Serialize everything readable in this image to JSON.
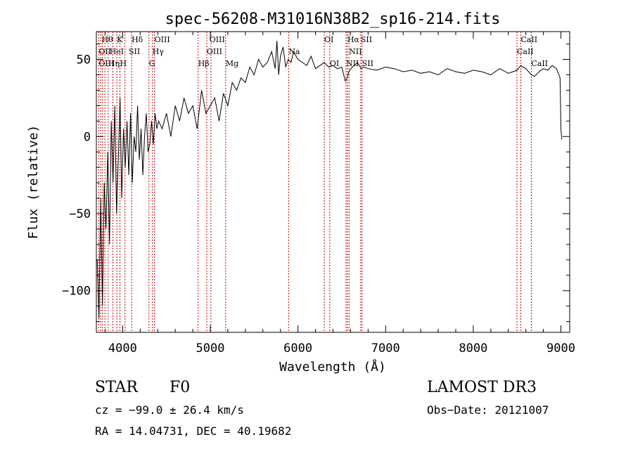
{
  "chart_data": {
    "type": "line",
    "title": "spec-56208-M31016N38B2_sp16-214.fits",
    "xlabel": "Wavelength (Å)",
    "ylabel": "Flux (relative)",
    "xlim": [
      3700,
      9100
    ],
    "ylim": [
      -127,
      68
    ],
    "xticks": [
      4000,
      5000,
      6000,
      7000,
      8000,
      9000
    ],
    "xtick_labels": [
      "4000",
      "5000",
      "6000",
      "7000",
      "8000",
      "9000"
    ],
    "yticks": [
      -100,
      -50,
      0,
      50
    ],
    "ytick_labels": [
      "−100",
      "−50",
      "0",
      "50"
    ],
    "series": [
      {
        "name": "spectrum",
        "x": [
          3710,
          3730,
          3750,
          3770,
          3790,
          3810,
          3830,
          3850,
          3870,
          3890,
          3910,
          3930,
          3950,
          3970,
          3990,
          4010,
          4030,
          4050,
          4070,
          4090,
          4110,
          4130,
          4150,
          4170,
          4190,
          4210,
          4230,
          4250,
          4270,
          4290,
          4310,
          4330,
          4350,
          4370,
          4390,
          4410,
          4450,
          4500,
          4550,
          4600,
          4650,
          4700,
          4750,
          4800,
          4850,
          4900,
          4950,
          5000,
          5050,
          5100,
          5150,
          5200,
          5250,
          5300,
          5350,
          5400,
          5450,
          5500,
          5550,
          5600,
          5650,
          5700,
          5740,
          5760,
          5780,
          5800,
          5830,
          5860,
          5890,
          5920,
          5950,
          6000,
          6050,
          6100,
          6150,
          6200,
          6250,
          6300,
          6350,
          6400,
          6450,
          6500,
          6540,
          6562,
          6580,
          6620,
          6680,
          6720,
          6750,
          6800,
          6900,
          7000,
          7100,
          7200,
          7300,
          7400,
          7500,
          7600,
          7700,
          7800,
          7900,
          8000,
          8100,
          8200,
          8300,
          8400,
          8500,
          8540,
          8600,
          8662,
          8700,
          8750,
          8800,
          8850,
          8900,
          8950,
          8990,
          9000,
          9010
        ],
        "values": [
          -80,
          -118,
          -40,
          -110,
          -30,
          -60,
          -10,
          -70,
          10,
          -30,
          20,
          -50,
          -15,
          25,
          -40,
          5,
          -20,
          10,
          -25,
          15,
          -30,
          0,
          -10,
          20,
          -15,
          5,
          -25,
          0,
          15,
          -10,
          -5,
          10,
          -5,
          15,
          5,
          10,
          5,
          15,
          0,
          20,
          10,
          25,
          15,
          20,
          5,
          30,
          15,
          20,
          25,
          10,
          28,
          20,
          35,
          30,
          38,
          35,
          45,
          40,
          50,
          45,
          48,
          55,
          44,
          62,
          40,
          52,
          58,
          45,
          50,
          48,
          55,
          50,
          48,
          46,
          52,
          44,
          46,
          48,
          45,
          46,
          44,
          45,
          36,
          38,
          42,
          45,
          48,
          44,
          45,
          44,
          43,
          45,
          44,
          42,
          43,
          41,
          42,
          40,
          44,
          42,
          41,
          43,
          42,
          40,
          44,
          41,
          43,
          46,
          44,
          40,
          39,
          42,
          44,
          43,
          46,
          44,
          38,
          5,
          -2
        ]
      }
    ],
    "lines": {
      "wavelengths": [
        3727,
        3750,
        3770,
        3798,
        3835,
        3889,
        3934,
        3969,
        4026,
        4102,
        4300,
        4340,
        4363,
        4861,
        4959,
        5007,
        5175,
        5893,
        6300,
        6363,
        6548,
        6563,
        6583,
        6716,
        6731,
        8498,
        8542,
        8662
      ],
      "labels": [
        {
          "text": "Hθ",
          "wl": 3760,
          "row": 0
        },
        {
          "text": "K",
          "wl": 3934,
          "row": 0
        },
        {
          "text": "Hδ",
          "wl": 4102,
          "row": 0
        },
        {
          "text": "OIII",
          "wl": 4363,
          "row": 0
        },
        {
          "text": "OIII",
          "wl": 4990,
          "row": 0
        },
        {
          "text": "OI",
          "wl": 6300,
          "row": 0
        },
        {
          "text": "Hα",
          "wl": 6563,
          "row": 0
        },
        {
          "text": "SII",
          "wl": 6716,
          "row": 0
        },
        {
          "text": "CaII",
          "wl": 8542,
          "row": 0
        },
        {
          "text": "OII",
          "wl": 3727,
          "row": 1
        },
        {
          "text": "HeI",
          "wl": 3850,
          "row": 1
        },
        {
          "text": "SII",
          "wl": 4069,
          "row": 1
        },
        {
          "text": "Hγ",
          "wl": 4340,
          "row": 1
        },
        {
          "text": "OIII",
          "wl": 4959,
          "row": 1
        },
        {
          "text": "Na",
          "wl": 5893,
          "row": 1
        },
        {
          "text": "NII",
          "wl": 6583,
          "row": 1
        },
        {
          "text": "CaII",
          "wl": 8498,
          "row": 1
        },
        {
          "text": "OIII",
          "wl": 3727,
          "row": 2
        },
        {
          "text": "Hη",
          "wl": 3835,
          "row": 2
        },
        {
          "text": "H",
          "wl": 3969,
          "row": 2
        },
        {
          "text": "G",
          "wl": 4300,
          "row": 2
        },
        {
          "text": "Hβ",
          "wl": 4861,
          "row": 2
        },
        {
          "text": "Mg",
          "wl": 5175,
          "row": 2
        },
        {
          "text": "OI",
          "wl": 6363,
          "row": 2
        },
        {
          "text": "NII",
          "wl": 6548,
          "row": 2
        },
        {
          "text": "SII",
          "wl": 6731,
          "row": 2
        },
        {
          "text": "CaII",
          "wl": 8662,
          "row": 2
        }
      ]
    }
  },
  "info": {
    "class": "STAR",
    "subclass": "F0",
    "survey": "LAMOST DR3",
    "cz": "cz = −99.0 ± 26.4 km/s",
    "obs_date": "Obs−Date: 20121007",
    "radec": "RA =  14.04731, DEC =  40.19682"
  },
  "colors": {
    "line_color": "#000000",
    "marker_color": "#cc0000"
  }
}
